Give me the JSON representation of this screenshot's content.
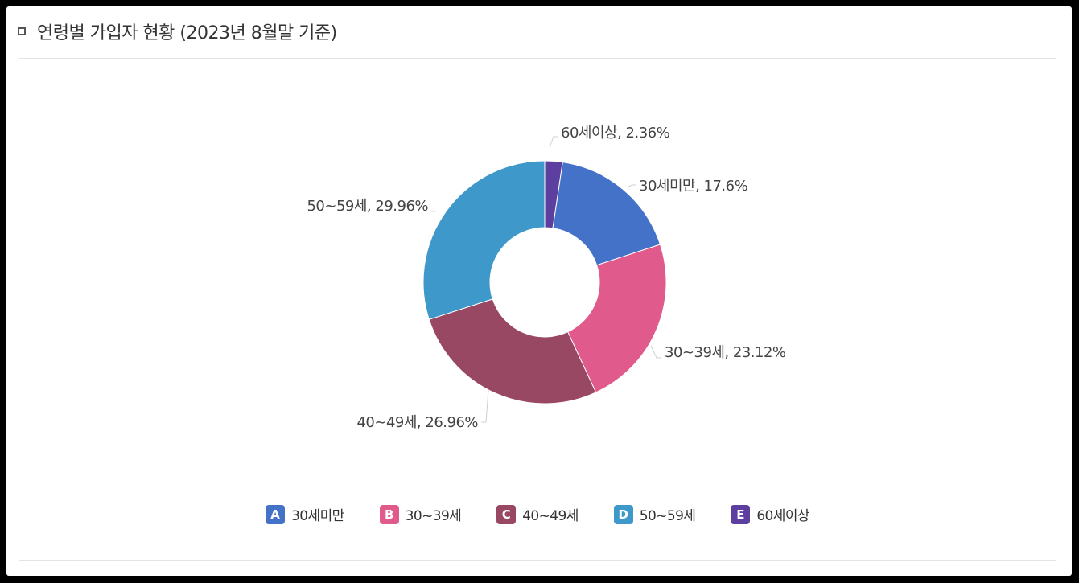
{
  "page": {
    "title": "연령별 가입자 현황 (2023년 8월말 기준)"
  },
  "chart_data": {
    "type": "pie",
    "donut": true,
    "categories": [
      "30세미만",
      "30~39세",
      "40~49세",
      "50~59세",
      "60세이상"
    ],
    "values": [
      17.6,
      23.12,
      26.96,
      29.96,
      2.36
    ],
    "data_labels": [
      "30세미만, 17.6%",
      "30~39세, 23.12%",
      "40~49세, 26.96%",
      "50~59세, 29.96%",
      "60세이상, 2.36%"
    ],
    "colors": [
      "#4472C8",
      "#E05A8C",
      "#984862",
      "#3E98CA",
      "#5C3F9E"
    ],
    "legend": {
      "placement": "bottom",
      "keys": [
        "A",
        "B",
        "C",
        "D",
        "E"
      ],
      "labels": [
        "30세미만",
        "30~39세",
        "40~49세",
        "50~59세",
        "60세이상"
      ]
    }
  }
}
